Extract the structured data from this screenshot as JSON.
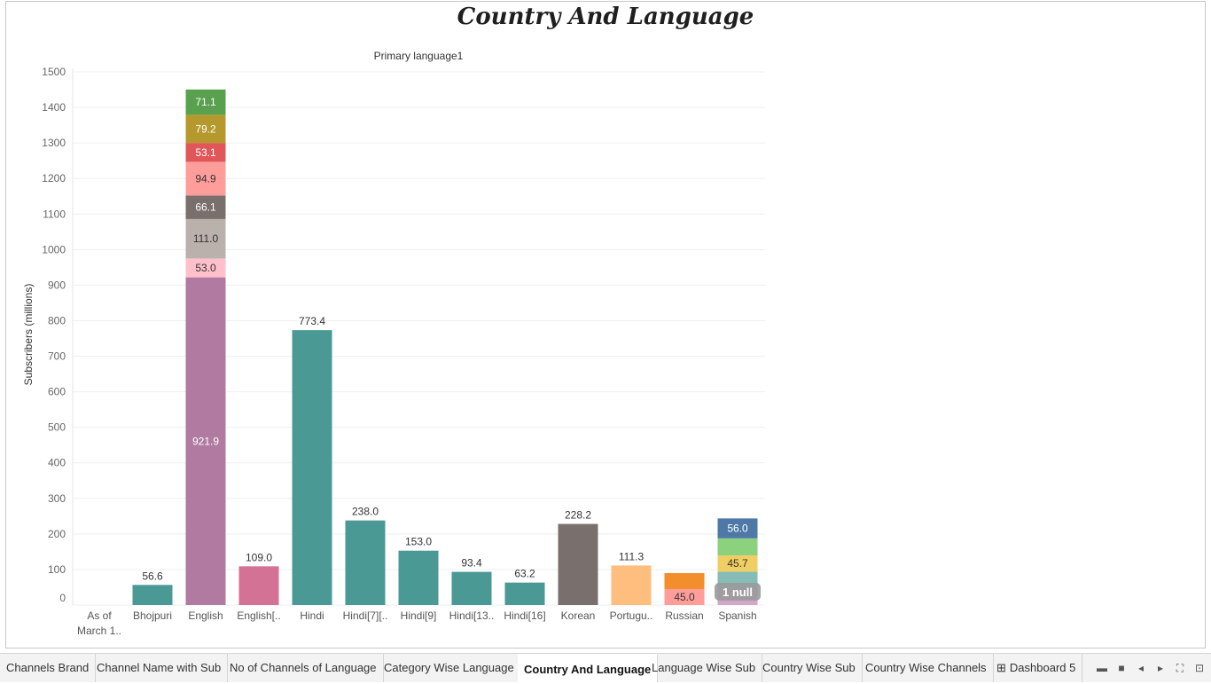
{
  "dashboard": {
    "title": "Country And Language"
  },
  "chart_data": {
    "type": "bar",
    "stacked": true,
    "title": "Primary language1",
    "xlabel": "",
    "ylabel": "Subscribers (millions)",
    "ylim": [
      0,
      1500
    ],
    "yticks": [
      0,
      100,
      200,
      300,
      400,
      500,
      600,
      700,
      800,
      900,
      1000,
      1100,
      1200,
      1300,
      1400,
      1500
    ],
    "grid": true,
    "null_indicator": "1 null",
    "categories": [
      {
        "label": [
          "As of",
          "March 1.."
        ],
        "segments": []
      },
      {
        "label": [
          "Bhojpuri"
        ],
        "segments": [
          {
            "value": 56.6,
            "color": "#4a9994",
            "label": "56.6"
          }
        ]
      },
      {
        "label": [
          "English"
        ],
        "segments": [
          {
            "value": 921.9,
            "color": "#b07aa1",
            "label": "921.9"
          },
          {
            "value": 53.0,
            "color": "#ffc0cb",
            "label": "53.0"
          },
          {
            "value": 111.0,
            "color": "#bab0ac",
            "label": "111.0"
          },
          {
            "value": 66.1,
            "color": "#79706e",
            "label": "66.1"
          },
          {
            "value": 94.9,
            "color": "#ff9d9a",
            "label": "94.9"
          },
          {
            "value": 53.1,
            "color": "#e15759",
            "label": "53.1"
          },
          {
            "value": 79.2,
            "color": "#b6992d",
            "label": "79.2"
          },
          {
            "value": 71.1,
            "color": "#59a14f",
            "label": "71.1"
          }
        ]
      },
      {
        "label": [
          "English[.."
        ],
        "segments": [
          {
            "value": 109.0,
            "color": "#d37295",
            "label": "109.0"
          }
        ]
      },
      {
        "label": [
          "Hindi"
        ],
        "segments": [
          {
            "value": 773.4,
            "color": "#4a9994",
            "label": "773.4"
          }
        ]
      },
      {
        "label": [
          "Hindi[7][.."
        ],
        "segments": [
          {
            "value": 238.0,
            "color": "#4a9994",
            "label": "238.0"
          }
        ]
      },
      {
        "label": [
          "Hindi[9]"
        ],
        "segments": [
          {
            "value": 153.0,
            "color": "#4a9994",
            "label": "153.0"
          }
        ]
      },
      {
        "label": [
          "Hindi[13.."
        ],
        "segments": [
          {
            "value": 93.4,
            "color": "#4a9994",
            "label": "93.4"
          }
        ]
      },
      {
        "label": [
          "Hindi[16]"
        ],
        "segments": [
          {
            "value": 63.2,
            "color": "#4a9994",
            "label": "63.2"
          }
        ]
      },
      {
        "label": [
          "Korean"
        ],
        "segments": [
          {
            "value": 228.2,
            "color": "#79706e",
            "label": "228.2"
          }
        ]
      },
      {
        "label": [
          "Portugu.."
        ],
        "segments": [
          {
            "value": 111.3,
            "color": "#ffbe7d",
            "label": "111.3"
          }
        ]
      },
      {
        "label": [
          "Russian"
        ],
        "segments": [
          {
            "value": 45.0,
            "color": "#ff9d9a",
            "label": "45.0"
          },
          {
            "value": 45.0,
            "color": "#f28e2b",
            "label": ""
          }
        ]
      },
      {
        "label": [
          "Spanish"
        ],
        "segments": [
          {
            "value": 45.0,
            "color": "#d4a6c8",
            "label": ""
          },
          {
            "value": 49.0,
            "color": "#86bcb6",
            "label": ""
          },
          {
            "value": 45.7,
            "color": "#f1ce63",
            "label": "45.7"
          },
          {
            "value": 48.0,
            "color": "#8cd17d",
            "label": ""
          },
          {
            "value": 56.0,
            "color": "#4e79a7",
            "label": "56.0"
          }
        ]
      }
    ]
  },
  "tabs": [
    {
      "label": "Channels Brand",
      "active": false,
      "icon": ""
    },
    {
      "label": "Channel Name with Sub",
      "active": false,
      "icon": ""
    },
    {
      "label": "No of Channels of Language",
      "active": false,
      "icon": ""
    },
    {
      "label": "Category Wise  Language",
      "active": false,
      "icon": ""
    },
    {
      "label": "Country And Language",
      "active": true,
      "icon": ""
    },
    {
      "label": "Language Wise Sub",
      "active": false,
      "icon": ""
    },
    {
      "label": "Country Wise Sub",
      "active": false,
      "icon": ""
    },
    {
      "label": "Country Wise Channels",
      "active": false,
      "icon": ""
    },
    {
      "label": "Dashboard 5",
      "active": false,
      "icon": "dashboard-grid-icon"
    }
  ],
  "controls": [
    {
      "name": "filmstrip-view-icon",
      "glyph": "▬"
    },
    {
      "name": "tab-view-icon",
      "glyph": "■"
    },
    {
      "name": "previous-sheet-icon",
      "glyph": "◂"
    },
    {
      "name": "next-sheet-icon",
      "glyph": "▸"
    },
    {
      "name": "fullscreen-icon",
      "glyph": "⛶"
    },
    {
      "name": "presentation-mode-icon",
      "glyph": "⊡"
    }
  ]
}
